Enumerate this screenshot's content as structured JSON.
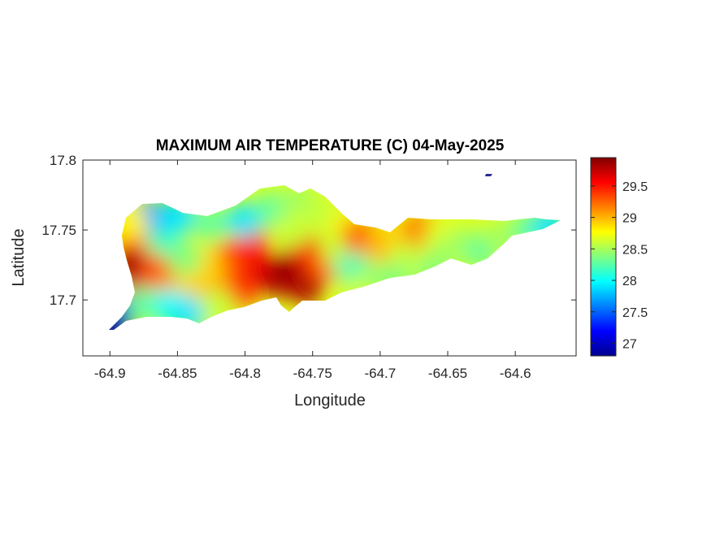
{
  "chart_data": {
    "type": "heatmap",
    "title": "MAXIMUM AIR TEMPERATURE (C) 04-May-2025",
    "xlabel": "Longitude",
    "ylabel": "Latitude",
    "xlim": [
      -64.92,
      -64.555
    ],
    "ylim": [
      17.66,
      17.8
    ],
    "xticks": [
      -64.9,
      -64.85,
      -64.8,
      -64.75,
      -64.7,
      -64.65,
      -64.6
    ],
    "xtick_labels": [
      "-64.9",
      "-64.85",
      "-64.8",
      "-64.75",
      "-64.7",
      "-64.65",
      "-64.6"
    ],
    "yticks": [
      17.7,
      17.75,
      17.8
    ],
    "ytick_labels": [
      "17.7",
      "17.75",
      "17.8"
    ],
    "colormap": "jet",
    "colorbar": {
      "range": [
        26.8,
        29.95
      ],
      "ticks": [
        27,
        27.5,
        28,
        28.5,
        29,
        29.5
      ],
      "tick_labels": [
        "27",
        "27.5",
        "28",
        "28.5",
        "29",
        "29.5"
      ]
    },
    "field_points": [
      [
        -64.885,
        17.725,
        29.9
      ],
      [
        -64.878,
        17.708,
        29.7
      ],
      [
        -64.884,
        17.745,
        29.4
      ],
      [
        -64.865,
        17.72,
        29.3
      ],
      [
        -64.855,
        17.705,
        29.1
      ],
      [
        -64.84,
        17.71,
        28.9
      ],
      [
        -64.82,
        17.705,
        29.0
      ],
      [
        -64.81,
        17.73,
        29.3
      ],
      [
        -64.795,
        17.74,
        29.5
      ],
      [
        -64.79,
        17.72,
        29.6
      ],
      [
        -64.775,
        17.715,
        29.8
      ],
      [
        -64.765,
        17.725,
        29.95
      ],
      [
        -64.755,
        17.71,
        29.8
      ],
      [
        -64.758,
        17.737,
        29.6
      ],
      [
        -64.742,
        17.725,
        29.3
      ],
      [
        -64.805,
        17.705,
        29.4
      ],
      [
        -64.83,
        17.725,
        28.9
      ],
      [
        -64.845,
        17.73,
        28.4
      ],
      [
        -64.86,
        17.745,
        28.2
      ],
      [
        -64.872,
        17.76,
        27.7
      ],
      [
        -64.85,
        17.76,
        27.9
      ],
      [
        -64.825,
        17.755,
        28.3
      ],
      [
        -64.8,
        17.757,
        27.9
      ],
      [
        -64.78,
        17.765,
        28.3
      ],
      [
        -64.76,
        17.772,
        28.5
      ],
      [
        -64.765,
        17.75,
        28.6
      ],
      [
        -64.74,
        17.76,
        28.6
      ],
      [
        -64.725,
        17.75,
        28.8
      ],
      [
        -64.73,
        17.735,
        28.6
      ],
      [
        -64.72,
        17.722,
        28.2
      ],
      [
        -64.705,
        17.712,
        28.4
      ],
      [
        -64.715,
        17.705,
        28.6
      ],
      [
        -64.715,
        17.745,
        29.3
      ],
      [
        -64.7,
        17.74,
        29.0
      ],
      [
        -64.685,
        17.745,
        28.9
      ],
      [
        -64.68,
        17.73,
        28.6
      ],
      [
        -64.67,
        17.75,
        29.2
      ],
      [
        -64.655,
        17.745,
        28.7
      ],
      [
        -64.64,
        17.74,
        28.5
      ],
      [
        -64.625,
        17.735,
        28.3
      ],
      [
        -64.61,
        17.745,
        28.5
      ],
      [
        -64.59,
        17.75,
        28.3
      ],
      [
        -64.575,
        17.753,
        27.9
      ],
      [
        -64.895,
        17.69,
        27.2
      ],
      [
        -64.9,
        17.681,
        26.9
      ],
      [
        -64.875,
        17.697,
        28.3
      ],
      [
        -64.855,
        17.695,
        28.0
      ],
      [
        -64.84,
        17.69,
        27.9
      ],
      [
        -64.82,
        17.695,
        28.6
      ],
      [
        -64.885,
        17.755,
        28.8
      ],
      [
        -64.622,
        17.788,
        26.9
      ],
      [
        -64.69,
        17.715,
        28.4
      ],
      [
        -64.65,
        17.735,
        28.5
      ],
      [
        -64.66,
        17.72,
        28.4
      ]
    ]
  }
}
